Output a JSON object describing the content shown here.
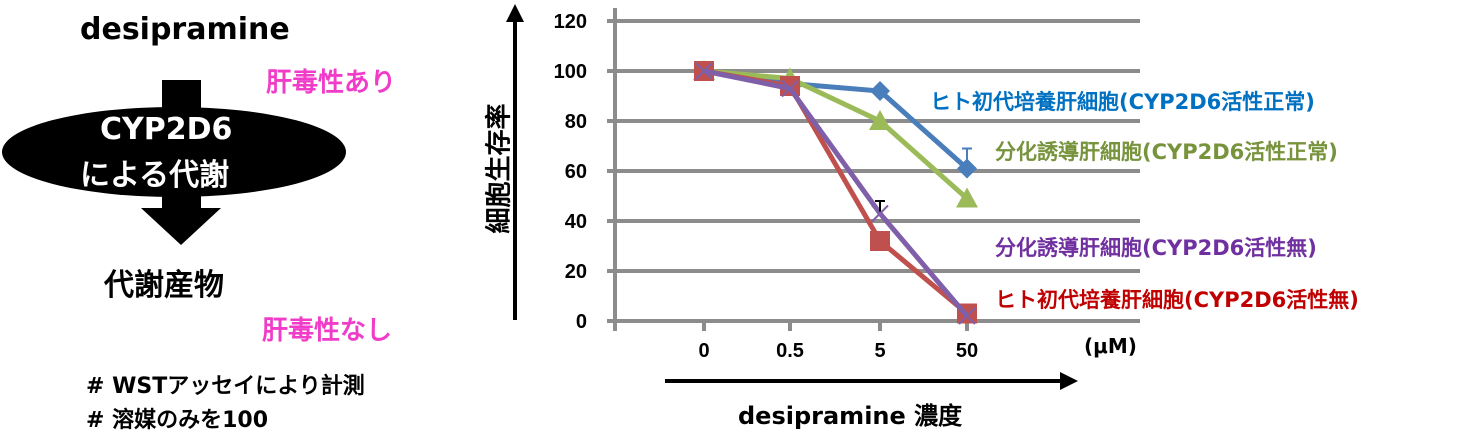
{
  "diagram": {
    "drug": "desipramine",
    "enzyme_line1": "CYP2D6",
    "enzyme_line2": "による代謝",
    "metabolite": "代謝産物",
    "toxic_yes": "肝毒性あり",
    "toxic_no": "肝毒性なし",
    "note1": "# WSTアッセイにより計測",
    "note2": "# 溶媒のみを100",
    "pink": "#f03cc8"
  },
  "chart_data": {
    "type": "line",
    "ylabel": "細胞生存率",
    "xlabel": "desipramine 濃度",
    "x_unit": "(μM)",
    "categories": [
      "0",
      "0.5",
      "5",
      "50"
    ],
    "ylim": [
      0,
      120
    ],
    "yticks": [
      "0",
      "20",
      "40",
      "60",
      "80",
      "100",
      "120"
    ],
    "grid": true,
    "legend": "right (inline labels)",
    "series": [
      {
        "name": "ヒト初代培養肝細胞(CYP2D6活性正常)",
        "values": [
          100,
          95,
          92,
          61
        ],
        "errors": [
          0,
          2,
          0,
          8
        ],
        "marker": "diamond",
        "color": "#4a7ebb",
        "label_color": "#0070c0"
      },
      {
        "name": "分化誘導肝細胞(CYP2D6活性正常)",
        "values": [
          100,
          97,
          80,
          49
        ],
        "errors": [
          0,
          0,
          0,
          0
        ],
        "marker": "triangle",
        "color": "#9bbb59",
        "label_color": "#77933c"
      },
      {
        "name": "ヒト初代培養肝細胞(CYP2D6活性無)",
        "values": [
          100,
          94,
          32,
          3
        ],
        "errors": [
          0,
          0,
          0,
          0
        ],
        "marker": "square",
        "color": "#c0504d",
        "label_color": "#c00000"
      },
      {
        "name": "分化誘導肝細胞(CYP2D6活性無)",
        "values": [
          100,
          93,
          43,
          2
        ],
        "errors": [
          0,
          0,
          5,
          0
        ],
        "marker": "x",
        "color": "#7f5fa8",
        "label_color": "#7030a0"
      }
    ]
  }
}
